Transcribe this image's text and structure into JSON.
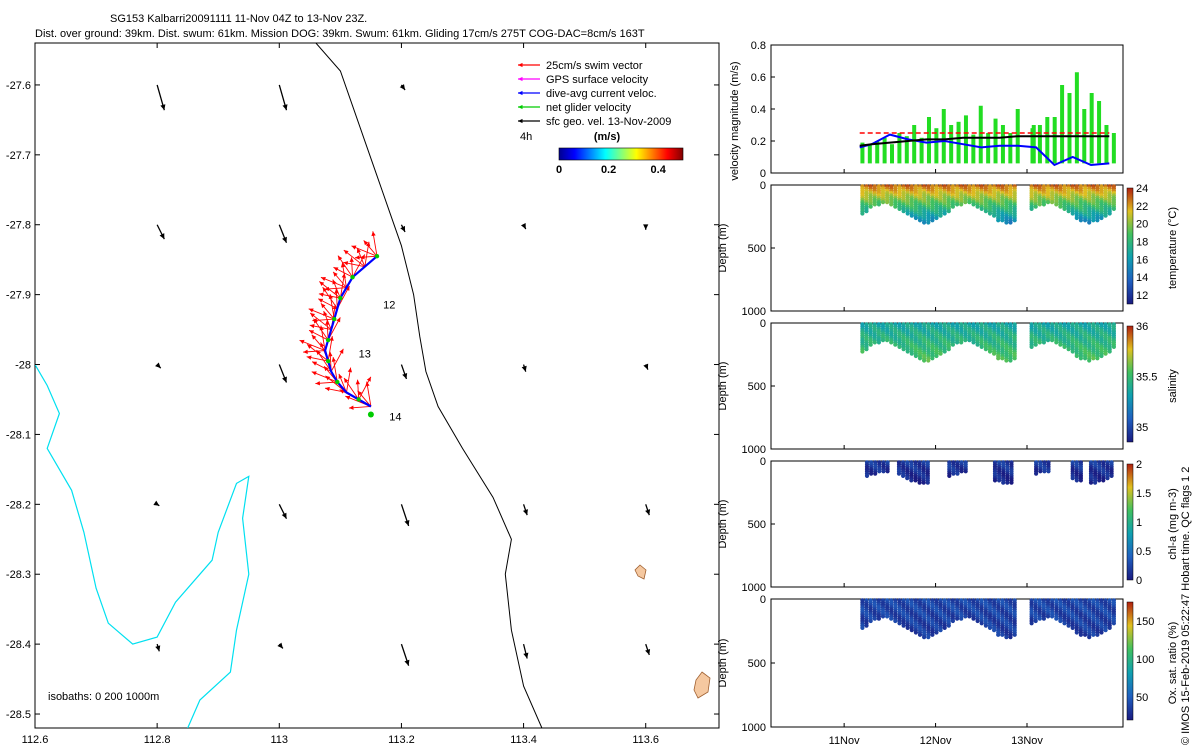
{
  "header": {
    "line1": "SG153 Kalbarri20091111 11-Nov 04Z to 13-Nov 23Z.",
    "line2": "Dist. over ground: 39km. Dist. swum: 61km. Mission DOG: 39km. Swum: 61km. Gliding 17cm/s 275T COG-DAC=8cm/s 163T"
  },
  "chart_data": [
    {
      "type": "scatter",
      "panel": "map",
      "xlim": [
        112.6,
        113.72
      ],
      "ylim": [
        -28.52,
        -27.54
      ],
      "x_ticks": [
        "112.6",
        "112.8",
        "113",
        "113.2",
        "113.4",
        "113.6"
      ],
      "x_tick_values": [
        112.6,
        112.8,
        113.0,
        113.2,
        113.4,
        113.6
      ],
      "y_ticks": [
        "-27.6",
        "-27.7",
        "-27.8",
        "-27.9",
        "-28",
        "-28.1",
        "-28.2",
        "-28.3",
        "-28.4",
        "-28.5"
      ],
      "y_tick_values": [
        -27.6,
        -27.7,
        -27.8,
        -27.9,
        -28.0,
        -28.1,
        -28.2,
        -28.3,
        -28.4,
        -28.5
      ],
      "legend": [
        {
          "label": "25cm/s swim vector",
          "color": "#ff0000"
        },
        {
          "label": "GPS surface velocity",
          "color": "#ff00ff"
        },
        {
          "label": "dive-avg current veloc.",
          "color": "#0000ff"
        },
        {
          "label": "net glider velocity",
          "color": "#00cc00"
        },
        {
          "label": "sfc geo. vel. 13-Nov-2009",
          "color": "#000000"
        }
      ],
      "legend_note": "4h",
      "colorbar": {
        "label": "(m/s)",
        "ticks": [
          "0",
          "0.2",
          "0.4"
        ],
        "tick_values": [
          0,
          0.2,
          0.4
        ],
        "range": [
          0,
          0.5
        ]
      },
      "day_labels": [
        {
          "text": "12",
          "lon": 113.17,
          "lat": -27.92
        },
        {
          "text": "13",
          "lon": 113.13,
          "lat": -27.99
        },
        {
          "text": "14",
          "lon": 113.18,
          "lat": -28.08
        }
      ],
      "isobath_label": "isobaths: 0   200  1000m",
      "glider_track": [
        [
          113.16,
          -27.845
        ],
        [
          113.14,
          -27.86
        ],
        [
          113.12,
          -27.875
        ],
        [
          113.11,
          -27.89
        ],
        [
          113.1,
          -27.905
        ],
        [
          113.095,
          -27.92
        ],
        [
          113.09,
          -27.935
        ],
        [
          113.085,
          -27.95
        ],
        [
          113.08,
          -27.965
        ],
        [
          113.075,
          -27.98
        ],
        [
          113.08,
          -27.995
        ],
        [
          113.085,
          -28.01
        ],
        [
          113.095,
          -28.025
        ],
        [
          113.11,
          -28.04
        ],
        [
          113.13,
          -28.05
        ],
        [
          113.15,
          -28.06
        ]
      ],
      "surface_vectors": [
        {
          "lon": 112.8,
          "lat": -27.6,
          "u": 0.01,
          "v": -0.035
        },
        {
          "lon": 113.0,
          "lat": -27.6,
          "u": 0.01,
          "v": -0.035
        },
        {
          "lon": 113.2,
          "lat": -27.6,
          "u": 0.005,
          "v": -0.007
        },
        {
          "lon": 112.8,
          "lat": -27.8,
          "u": 0.01,
          "v": -0.02
        },
        {
          "lon": 113.0,
          "lat": -27.8,
          "u": 0.01,
          "v": -0.025
        },
        {
          "lon": 113.2,
          "lat": -27.8,
          "u": 0.005,
          "v": -0.01
        },
        {
          "lon": 113.4,
          "lat": -27.8,
          "u": 0.003,
          "v": -0.006
        },
        {
          "lon": 113.6,
          "lat": -27.8,
          "u": 0.0,
          "v": -0.007
        },
        {
          "lon": 112.8,
          "lat": -28.0,
          "u": 0.005,
          "v": -0.005
        },
        {
          "lon": 113.0,
          "lat": -28.0,
          "u": 0.01,
          "v": -0.025
        },
        {
          "lon": 113.2,
          "lat": -28.0,
          "u": 0.007,
          "v": -0.02
        },
        {
          "lon": 113.4,
          "lat": -28.0,
          "u": 0.003,
          "v": -0.01
        },
        {
          "lon": 113.6,
          "lat": -28.0,
          "u": 0.003,
          "v": -0.007
        },
        {
          "lon": 112.8,
          "lat": -28.2,
          "u": 0.003,
          "v": -0.002
        },
        {
          "lon": 113.0,
          "lat": -28.2,
          "u": 0.01,
          "v": -0.02
        },
        {
          "lon": 113.2,
          "lat": -28.2,
          "u": 0.01,
          "v": -0.03
        },
        {
          "lon": 113.4,
          "lat": -28.2,
          "u": 0.005,
          "v": -0.015
        },
        {
          "lon": 113.6,
          "lat": -28.2,
          "u": 0.005,
          "v": -0.015
        },
        {
          "lon": 112.8,
          "lat": -28.4,
          "u": 0.003,
          "v": -0.01
        },
        {
          "lon": 113.0,
          "lat": -28.4,
          "u": 0.005,
          "v": -0.006
        },
        {
          "lon": 113.2,
          "lat": -28.4,
          "u": 0.01,
          "v": -0.03
        },
        {
          "lon": 113.4,
          "lat": -28.4,
          "u": 0.005,
          "v": -0.02
        },
        {
          "lon": 113.6,
          "lat": -28.4,
          "u": 0.005,
          "v": -0.015
        }
      ]
    },
    {
      "type": "line",
      "panel": "velocity",
      "ylabel": "velocity magnitude (m/s)",
      "ylim": [
        0,
        0.8
      ],
      "y_ticks": [
        "0",
        "0.2",
        "0.4",
        "0.6",
        "0.8"
      ],
      "y_tick_values": [
        0,
        0.2,
        0.4,
        0.6,
        0.8
      ],
      "x": [
        11.17,
        11.3,
        11.5,
        11.7,
        11.9,
        12.1,
        12.3,
        12.5,
        12.7,
        12.9,
        13.1,
        13.3,
        13.5,
        13.7,
        13.9
      ],
      "series": [
        {
          "color": "#0000ff",
          "values": [
            0.16,
            0.18,
            0.24,
            0.21,
            0.19,
            0.2,
            0.18,
            0.16,
            0.17,
            0.17,
            0.16,
            0.05,
            0.1,
            0.05,
            0.06
          ]
        },
        {
          "color": "#000000",
          "values": [
            0.17,
            0.18,
            0.19,
            0.2,
            0.21,
            0.21,
            0.22,
            0.22,
            0.22,
            0.23,
            0.23,
            0.23,
            0.23,
            0.23,
            0.23
          ]
        },
        {
          "color": "#ff0000",
          "values": [
            0.25,
            0.25,
            0.25,
            0.25,
            0.25,
            0.25,
            0.25,
            0.25,
            0.25,
            0.25,
            0.25,
            0.25,
            0.25,
            0.25,
            0.25
          ]
        }
      ],
      "green_bars": [
        0.19,
        0.18,
        0.2,
        0.22,
        0.18,
        0.25,
        0.23,
        0.3,
        0.22,
        0.35,
        0.28,
        0.4,
        0.3,
        0.32,
        0.36,
        0.24,
        0.42,
        0.25,
        0.34,
        0.3,
        0.25,
        0.4,
        0.3,
        0.28,
        0.3,
        0.35,
        0.35,
        0.55,
        0.5,
        0.63,
        0.4,
        0.5,
        0.45,
        0.3,
        0.25
      ]
    },
    {
      "type": "scatter",
      "panel": "temperature",
      "ylabel": "Depth (m)",
      "cbar_label": "temperature (°C)",
      "ylim": [
        1000,
        0
      ],
      "y_ticks": [
        "0",
        "500",
        "1000"
      ],
      "y_tick_values": [
        0,
        500,
        1000
      ],
      "cbar_range": [
        11,
        24
      ],
      "cbar_ticks": [
        "24",
        "22",
        "20",
        "18",
        "16",
        "14",
        "12"
      ],
      "cbar_tick_values": [
        24,
        22,
        20,
        18,
        16,
        14,
        12
      ],
      "max_depth": 300,
      "surface_value": 23,
      "deep_value": 15
    },
    {
      "type": "scatter",
      "panel": "salinity",
      "ylabel": "Depth (m)",
      "cbar_label": "salinity",
      "ylim": [
        1000,
        0
      ],
      "y_ticks": [
        "0",
        "500",
        "1000"
      ],
      "y_tick_values": [
        0,
        500,
        1000
      ],
      "cbar_range": [
        34.85,
        36
      ],
      "cbar_ticks": [
        "36",
        "35.5",
        "35"
      ],
      "cbar_tick_values": [
        36,
        35.5,
        35
      ],
      "max_depth": 300,
      "surface_value": 35.35,
      "deep_value": 35.55
    },
    {
      "type": "scatter",
      "panel": "chlorophyll",
      "ylabel": "Depth (m)",
      "cbar_label": "chl-a (mg m-3)",
      "ylim": [
        1000,
        0
      ],
      "y_ticks": [
        "0",
        "500",
        "1000"
      ],
      "y_tick_values": [
        0,
        500,
        1000
      ],
      "cbar_range": [
        0,
        2
      ],
      "cbar_ticks": [
        "2",
        "1.5",
        "1",
        "0.5",
        "0"
      ],
      "cbar_tick_values": [
        2,
        1.5,
        1,
        0.5,
        0
      ],
      "max_depth": 180,
      "surface_value": 0.2,
      "deep_value": 0.05,
      "dive_groups": [
        [
          11.25,
          11.5
        ],
        [
          11.6,
          11.95
        ],
        [
          12.15,
          12.35
        ],
        [
          12.65,
          12.85
        ],
        [
          13.1,
          13.25
        ],
        [
          13.5,
          13.6
        ],
        [
          13.7,
          13.95
        ]
      ]
    },
    {
      "type": "scatter",
      "panel": "oxygen",
      "ylabel": "Depth (m)",
      "cbar_label": "Ox. sat. ratio (%)",
      "ylim": [
        1000,
        0
      ],
      "y_ticks": [
        "0",
        "500",
        "1000"
      ],
      "y_tick_values": [
        0,
        500,
        1000
      ],
      "cbar_range": [
        20,
        175
      ],
      "cbar_ticks": [
        "150",
        "100",
        "50"
      ],
      "cbar_tick_values": [
        150,
        100,
        50
      ],
      "max_depth": 300,
      "surface_value": 40,
      "deep_value": 35
    }
  ],
  "time_axis": {
    "ticks": [
      "11Nov",
      "12Nov",
      "13Nov"
    ],
    "tick_values": [
      11,
      12,
      13
    ],
    "range": [
      10.2,
      14.05
    ]
  },
  "gaps": [
    [
      12.9,
      13.05
    ]
  ],
  "side_note": "© IMOS 15-Feb-2019 05:22:47 Hobart time. QC flags 1  2"
}
